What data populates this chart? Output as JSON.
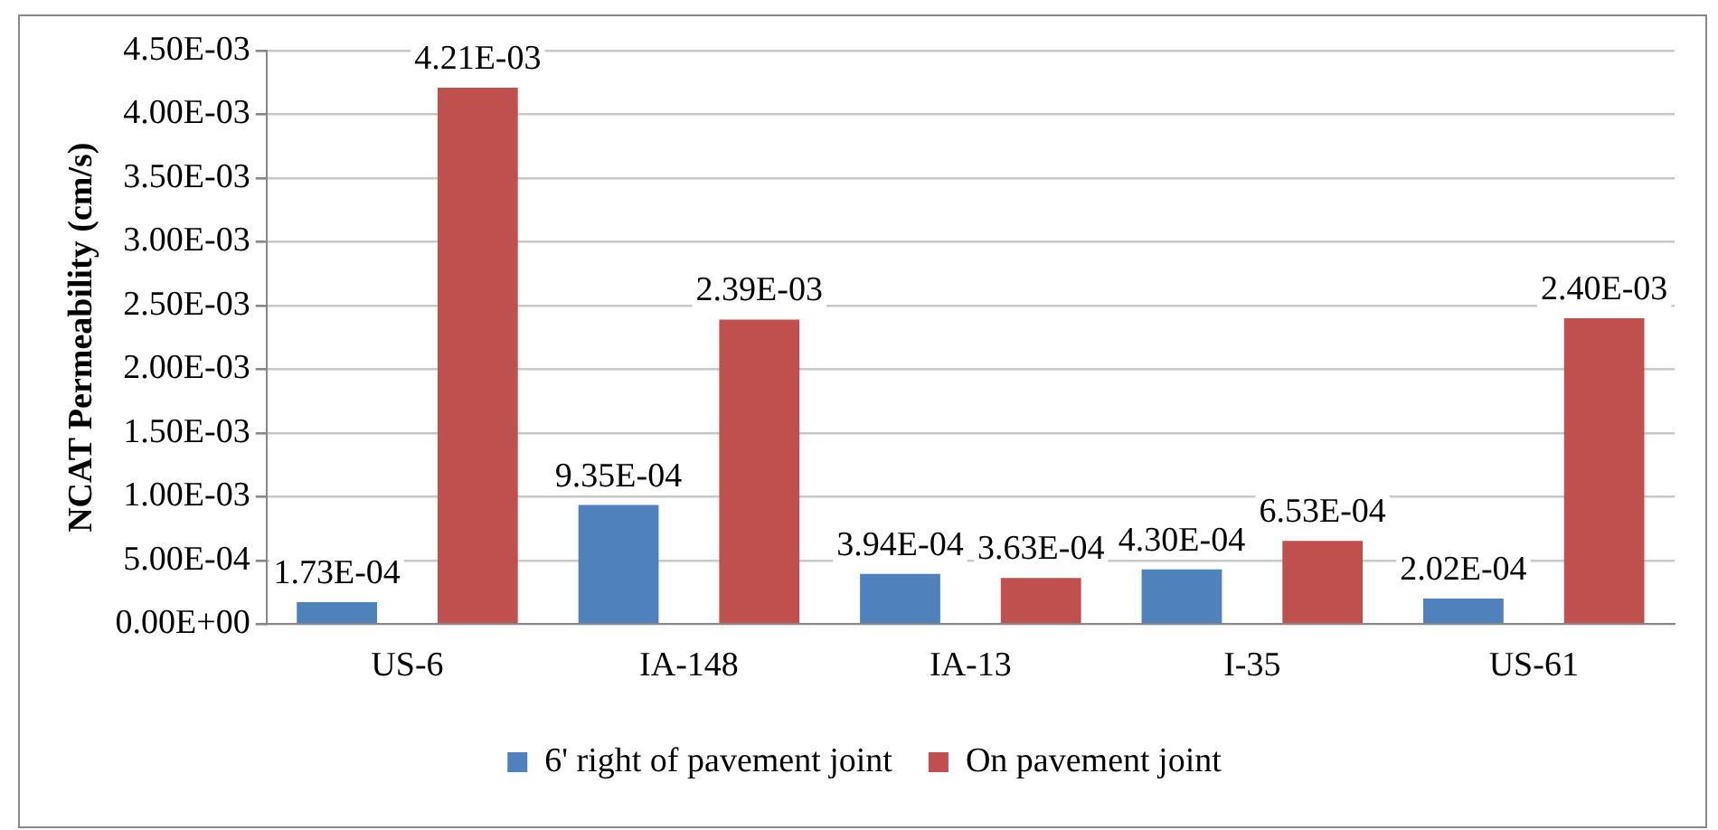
{
  "chart_data": {
    "type": "bar",
    "ylabel": "NCAT Permeability (cm/s)",
    "categories": [
      "US-6",
      "IA-148",
      "IA-13",
      "I-35",
      "US-61"
    ],
    "series": [
      {
        "name": "6' right of pavement joint",
        "color": "#4f81bd",
        "values": [
          0.000173,
          0.000935,
          0.000394,
          0.00043,
          0.000202
        ],
        "value_labels": [
          "1.73E-04",
          "9.35E-04",
          "3.94E-04",
          "4.30E-04",
          "2.02E-04"
        ]
      },
      {
        "name": "On pavement joint",
        "color": "#c0504d",
        "values": [
          0.00421,
          0.00239,
          0.000363,
          0.000653,
          0.0024
        ],
        "value_labels": [
          "4.21E-03",
          "2.39E-03",
          "3.63E-04",
          "6.53E-04",
          "2.40E-03"
        ]
      }
    ],
    "ylim": [
      0,
      0.0045
    ],
    "yticks": [
      {
        "value": 0,
        "label": "0.00E+00"
      },
      {
        "value": 0.0005,
        "label": "5.00E-04"
      },
      {
        "value": 0.001,
        "label": "1.00E-03"
      },
      {
        "value": 0.0015,
        "label": "1.50E-03"
      },
      {
        "value": 0.002,
        "label": "2.00E-03"
      },
      {
        "value": 0.0025,
        "label": "2.50E-03"
      },
      {
        "value": 0.003,
        "label": "3.00E-03"
      },
      {
        "value": 0.0035,
        "label": "3.50E-03"
      },
      {
        "value": 0.004,
        "label": "4.00E-03"
      },
      {
        "value": 0.0045,
        "label": "4.50E-03"
      }
    ],
    "grid": "y",
    "legend": "bottom"
  }
}
